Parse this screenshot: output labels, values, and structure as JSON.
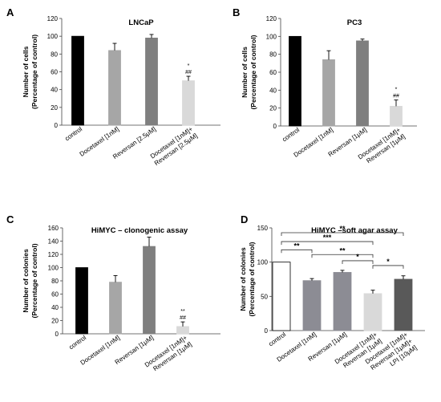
{
  "chart_data": [
    {
      "panel": "A",
      "type": "bar",
      "title": "LNCaP",
      "ylabel": [
        "Number of cells",
        "(Percentage of control)"
      ],
      "ylim": [
        0,
        120
      ],
      "yticks": [
        0,
        20,
        40,
        60,
        80,
        100,
        120
      ],
      "categories": [
        [
          "control"
        ],
        [
          "Docetaxel [1nM]"
        ],
        [
          "Reversan [2.5μM]"
        ],
        [
          "Docetaxel [1nM]+",
          "Reversan [2.5μM]"
        ]
      ],
      "values": [
        100,
        84,
        98,
        50
      ],
      "errors": [
        0,
        8,
        4,
        5
      ],
      "colors": [
        "#000000",
        "#a6a6a6",
        "#7f7f7f",
        "#d9d9d9"
      ],
      "annotations": [
        {
          "bar": 3,
          "lines": [
            "*",
            "##"
          ]
        }
      ],
      "brackets": []
    },
    {
      "panel": "B",
      "type": "bar",
      "title": "PC3",
      "ylabel": [
        "Number of cells",
        "(Percentage of control)"
      ],
      "ylim": [
        0,
        120
      ],
      "yticks": [
        0,
        20,
        40,
        60,
        80,
        100,
        120
      ],
      "categories": [
        [
          "control"
        ],
        [
          "Docetaxel [1nM]"
        ],
        [
          "Reversan [1μM]"
        ],
        [
          "Docetaxel [1nM]+",
          "Reversan [1μM]"
        ]
      ],
      "values": [
        100,
        74,
        95,
        22
      ],
      "errors": [
        0,
        10,
        2,
        7
      ],
      "colors": [
        "#000000",
        "#a6a6a6",
        "#7f7f7f",
        "#d9d9d9"
      ],
      "annotations": [
        {
          "bar": 3,
          "lines": [
            "*",
            "##"
          ]
        }
      ],
      "brackets": []
    },
    {
      "panel": "C",
      "type": "bar",
      "title": "HiMYC – clonogenic assay",
      "ylabel": [
        "Number of colonies",
        "(Percentage of control)"
      ],
      "ylim": [
        0,
        160
      ],
      "yticks": [
        0,
        20,
        40,
        60,
        80,
        100,
        120,
        140,
        160
      ],
      "categories": [
        [
          "control"
        ],
        [
          "Docetaxel [1nM]"
        ],
        [
          "Reversan [1μM]"
        ],
        [
          "Docetaxel [1nM]+",
          "Reversan [1μM]"
        ]
      ],
      "values": [
        100,
        78,
        132,
        11
      ],
      "errors": [
        0,
        10,
        14,
        7
      ],
      "colors": [
        "#000000",
        "#a6a6a6",
        "#7f7f7f",
        "#d9d9d9"
      ],
      "annotations": [
        {
          "bar": 3,
          "lines": [
            "**",
            "##"
          ]
        }
      ],
      "brackets": []
    },
    {
      "panel": "D",
      "type": "bar",
      "title": "HiMYC –soft agar assay",
      "ylabel": [
        "Number of colonies",
        "(Percentage of control)"
      ],
      "ylim": [
        0,
        150
      ],
      "yticks": [
        0,
        50,
        100,
        150
      ],
      "categories": [
        [
          "control"
        ],
        [
          "Docetaxel [1nM]"
        ],
        [
          "Reversan [1μM]"
        ],
        [
          "Docetaxel [1nM]+",
          "Reversan [1μM]"
        ],
        [
          "Docetaxel [1nM]+",
          "Reversan [1μM]+",
          "LPI [10μM]"
        ]
      ],
      "values": [
        100,
        73,
        85,
        54,
        75
      ],
      "errors": [
        0,
        3,
        3,
        5,
        5
      ],
      "colors": [
        "#ffffff",
        "#8c8c94",
        "#8c8c94",
        "#d9d9d9",
        "#595959"
      ],
      "annotations": [],
      "brackets": [
        {
          "from": 0,
          "to": 4,
          "level": 143,
          "label": "**"
        },
        {
          "from": 0,
          "to": 3,
          "level": 130,
          "label": "***"
        },
        {
          "from": 0,
          "to": 1,
          "level": 118,
          "label": "**"
        },
        {
          "from": 1,
          "to": 3,
          "level": 111,
          "label": "**"
        },
        {
          "from": 2,
          "to": 3,
          "level": 102,
          "label": "*"
        },
        {
          "from": 3,
          "to": 4,
          "level": 95,
          "label": "*"
        }
      ]
    }
  ]
}
